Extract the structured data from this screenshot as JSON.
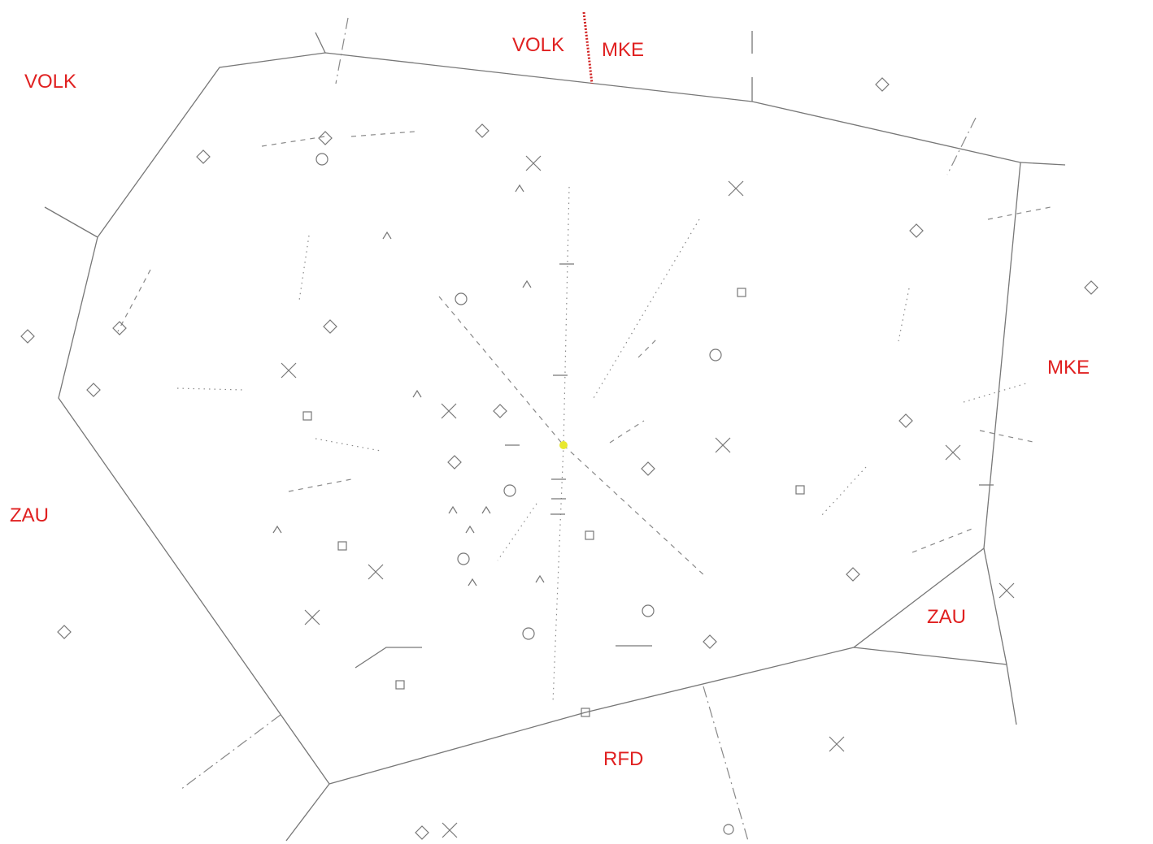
{
  "labels": [
    {
      "text": "VOLK"
    },
    {
      "text": "VOLK"
    },
    {
      "text": "MKE"
    },
    {
      "text": "MKE"
    },
    {
      "text": "ZAU"
    },
    {
      "text": "ZAU"
    },
    {
      "text": "RFD"
    }
  ]
}
